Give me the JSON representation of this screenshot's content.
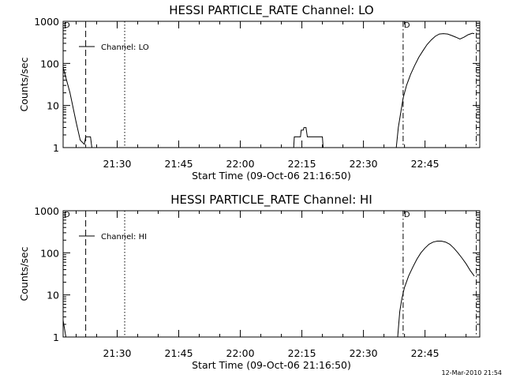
{
  "stamp": "12-Mar-2010 21:54",
  "chart_data": [
    {
      "type": "line",
      "title": "HESSI PARTICLE_RATE Channel: LO",
      "xlabel": "Start Time (09-Oct-06 21:16:50)",
      "ylabel": "Counts/sec",
      "y_scale": "log",
      "ylim": [
        1,
        1000
      ],
      "y_ticks": [
        "1",
        "10",
        "100",
        "1000"
      ],
      "xlim": [
        "21:16:50",
        "22:58:20"
      ],
      "x_ticks": [
        "21:30",
        "21:45",
        "22:00",
        "22:15",
        "22:30",
        "22:45"
      ],
      "legend": {
        "label": "Channel: LO",
        "placement": "top-left"
      },
      "markers": [
        {
          "style": "dashed",
          "time": "21:22:20",
          "label": ""
        },
        {
          "style": "dotted",
          "time": "21:31:50",
          "label": ""
        },
        {
          "style": "dashdot",
          "time": "22:39:40",
          "label": "D"
        },
        {
          "style": "dashdot",
          "time": "22:57:30",
          "label": ""
        }
      ],
      "corner_label": "D",
      "series": [
        {
          "name": "Channel: LO",
          "x": [
            "21:16:50",
            "21:18:30",
            "21:20:00",
            "21:21:00",
            "21:22:00",
            "21:22:20",
            "21:23:30",
            "21:23:50",
            "21:24:00"
          ],
          "y": [
            80,
            20,
            4,
            1.5,
            1.2,
            1.8,
            1.8,
            1,
            1
          ]
        },
        {
          "name": "",
          "x": [
            "22:13:00",
            "22:13:10",
            "22:14:40",
            "22:14:50",
            "22:15:20",
            "22:15:30",
            "22:16:00",
            "22:16:20",
            "22:18:00",
            "22:18:10",
            "22:20:00",
            "22:20:10"
          ],
          "y": [
            1,
            1.8,
            1.8,
            2.6,
            2.6,
            3.0,
            3.0,
            1.8,
            1.8,
            1.8,
            1.8,
            1
          ]
        },
        {
          "name": "",
          "x": [
            "22:38:00",
            "22:38:30",
            "22:39:00",
            "22:39:40",
            "22:40:30",
            "22:41:30",
            "22:42:30",
            "22:43:30",
            "22:44:30",
            "22:45:30",
            "22:46:30",
            "22:47:30",
            "22:48:30",
            "22:49:30",
            "22:50:30",
            "22:51:30",
            "22:52:30",
            "22:53:30",
            "22:54:30",
            "22:55:30",
            "22:56:30",
            "22:57:00"
          ],
          "y": [
            1,
            3,
            6,
            15,
            30,
            55,
            90,
            140,
            200,
            280,
            360,
            440,
            500,
            510,
            500,
            460,
            420,
            380,
            420,
            480,
            520,
            510
          ]
        }
      ]
    },
    {
      "type": "line",
      "title": "HESSI PARTICLE_RATE Channel: HI",
      "xlabel": "Start Time (09-Oct-06 21:16:50)",
      "ylabel": "Counts/sec",
      "y_scale": "log",
      "ylim": [
        1,
        1000
      ],
      "y_ticks": [
        "1",
        "10",
        "100",
        "1000"
      ],
      "xlim": [
        "21:16:50",
        "22:58:20"
      ],
      "x_ticks": [
        "21:30",
        "21:45",
        "22:00",
        "22:15",
        "22:30",
        "22:45"
      ],
      "legend": {
        "label": "Channel: HI",
        "placement": "top-left"
      },
      "markers": [
        {
          "style": "dashed",
          "time": "21:22:20",
          "label": ""
        },
        {
          "style": "dotted",
          "time": "21:31:50",
          "label": ""
        },
        {
          "style": "dashdot",
          "time": "22:39:40",
          "label": "D"
        },
        {
          "style": "dashdot",
          "time": "22:57:30",
          "label": ""
        }
      ],
      "corner_label": "D",
      "series": [
        {
          "name": "Channel: HI",
          "x": [
            "21:16:50",
            "21:17:10",
            "21:17:30"
          ],
          "y": [
            2.5,
            1.6,
            1
          ]
        },
        {
          "name": "",
          "x": [
            "22:38:20",
            "22:38:50",
            "22:39:20",
            "22:40:00",
            "22:41:00",
            "22:42:00",
            "22:43:00",
            "22:44:00",
            "22:45:00",
            "22:46:00",
            "22:47:00",
            "22:48:00",
            "22:49:00",
            "22:50:00",
            "22:51:00",
            "22:52:00",
            "22:53:00",
            "22:54:00",
            "22:55:00",
            "22:56:00",
            "22:57:00"
          ],
          "y": [
            1,
            4,
            8,
            15,
            28,
            45,
            70,
            100,
            130,
            160,
            180,
            190,
            190,
            180,
            160,
            130,
            100,
            75,
            55,
            38,
            28
          ]
        }
      ]
    }
  ]
}
